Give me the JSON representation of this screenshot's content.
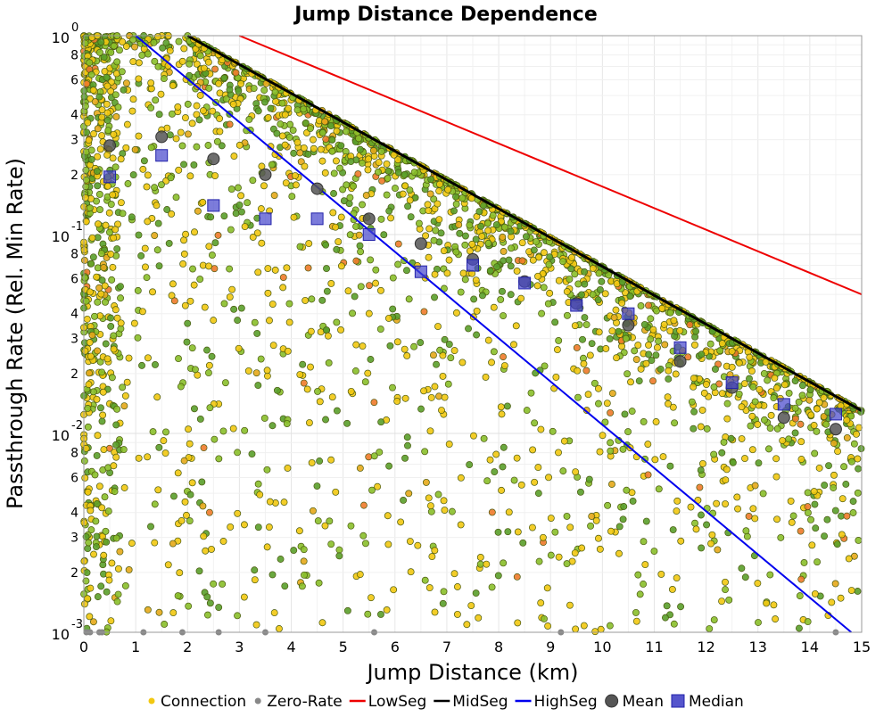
{
  "chart_data": {
    "type": "scatter",
    "title": "Jump Distance Dependence",
    "xlabel": "Jump Distance (km)",
    "ylabel": "Passthrough Rate (Rel. Min Rate)",
    "xlim": [
      0,
      15
    ],
    "ylim": [
      0.001,
      1
    ],
    "yscale": "log",
    "grid": true,
    "legend_position": "bottom",
    "x_ticks": [
      "0",
      "1",
      "2",
      "3",
      "4",
      "5",
      "6",
      "7",
      "8",
      "9",
      "10",
      "11",
      "12",
      "13",
      "14",
      "15"
    ],
    "y_major_ticks": [
      {
        "base": "10",
        "exp": "0",
        "value": 1
      },
      {
        "base": "10",
        "exp": "-1",
        "value": 0.1
      },
      {
        "base": "10",
        "exp": "-2",
        "value": 0.01
      },
      {
        "base": "10",
        "exp": "-3",
        "value": 0.001
      }
    ],
    "y_minor_ticks": [
      "2",
      "3",
      "4",
      "6",
      "8"
    ],
    "lines": [
      {
        "name": "LowSeg",
        "color": "#ee0000",
        "points": [
          [
            3,
            1
          ],
          [
            15,
            0.05
          ]
        ]
      },
      {
        "name": "MidSeg",
        "color": "#000000",
        "points": [
          [
            2,
            1
          ],
          [
            15,
            0.013
          ]
        ]
      },
      {
        "name": "HighSeg",
        "color": "#0000ee",
        "points": [
          [
            1,
            1
          ],
          [
            14.8,
            0.001
          ]
        ]
      }
    ],
    "mean": {
      "name": "Mean",
      "color": "#555555",
      "x": [
        0.5,
        1.5,
        2.5,
        3.5,
        4.5,
        5.5,
        6.5,
        7.5,
        8.5,
        9.5,
        10.5,
        11.5,
        12.5,
        13.5,
        14.5
      ],
      "y": [
        0.28,
        0.31,
        0.24,
        0.2,
        0.17,
        0.12,
        0.09,
        0.075,
        0.058,
        0.045,
        0.035,
        0.023,
        0.017,
        0.012,
        0.0105
      ]
    },
    "median": {
      "name": "Median",
      "color": "#4444cc",
      "x": [
        0.5,
        1.5,
        2.5,
        3.5,
        4.5,
        5.5,
        6.5,
        7.5,
        8.5,
        9.5,
        10.5,
        11.5,
        12.5,
        13.5,
        14.5
      ],
      "y": [
        0.195,
        0.25,
        0.14,
        0.12,
        0.12,
        0.1,
        0.065,
        0.07,
        0.057,
        0.044,
        0.04,
        0.027,
        0.018,
        0.014,
        0.0125
      ]
    },
    "connection": {
      "name": "Connection",
      "colors": [
        "#f2c811",
        "#8abf2a",
        "#5a9e2a",
        "#e5a81a",
        "#ee7a2a"
      ]
    },
    "zero_rate": {
      "name": "Zero-Rate",
      "color": "#888888",
      "x": [
        0.05,
        0.12,
        0.3,
        0.35,
        1.15,
        1.9,
        2.6,
        3.5,
        5.6,
        9.2,
        14.5
      ],
      "y": [
        0.001,
        0.001,
        0.001,
        0.001,
        0.001,
        0.001,
        0.001,
        0.001,
        0.001,
        0.001,
        0.001
      ]
    },
    "legend": [
      {
        "label": "Connection",
        "kind": "dot",
        "color": "#f2c811"
      },
      {
        "label": "Zero-Rate",
        "kind": "dot",
        "color": "#888888"
      },
      {
        "label": "LowSeg",
        "kind": "line",
        "color": "#ee0000"
      },
      {
        "label": "MidSeg",
        "kind": "line",
        "color": "#000000"
      },
      {
        "label": "HighSeg",
        "kind": "line",
        "color": "#0000ee"
      },
      {
        "label": "Mean",
        "kind": "circle",
        "color": "#555555"
      },
      {
        "label": "Median",
        "kind": "square",
        "color": "#5555cc"
      }
    ]
  }
}
